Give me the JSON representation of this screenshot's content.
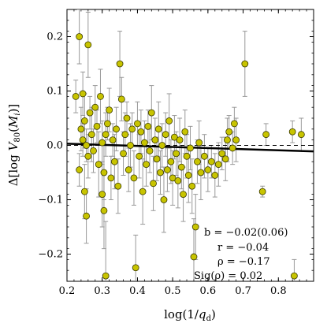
{
  "chart_data": {
    "type": "scatter",
    "xlabel": "log(1/q_d)",
    "ylabel": "Δ[log V_80(M_i)]",
    "xlim": [
      0.2,
      0.9
    ],
    "ylim": [
      -0.25,
      0.25
    ],
    "xticks": [
      0.2,
      0.3,
      0.4,
      0.5,
      0.6,
      0.7,
      0.8
    ],
    "xtick_labels": [
      "0.2",
      "0.3",
      "0.4",
      "0.5",
      "0.6",
      "0.7",
      "0.8"
    ],
    "yticks": [
      -0.2,
      -0.1,
      0.0,
      0.1,
      0.2
    ],
    "ytick_labels": [
      "−0.2",
      "−0.1",
      "0.0",
      "0.1",
      "0.2"
    ],
    "grid": false,
    "legend": "none",
    "colors": {
      "marker_fill": "#c8c400",
      "marker_edge": "#3a3a00",
      "error_bar": "#999999",
      "fit_line": "#000000",
      "zero_line": "#000000"
    },
    "fit_line": {
      "x": [
        0.2,
        0.9
      ],
      "y": [
        0.003,
        -0.011
      ],
      "style": "solid"
    },
    "reference_line": {
      "y": 0.0,
      "style": "dashed"
    },
    "stats": [
      {
        "label": "b = −0.02(0.06)"
      },
      {
        "label": "r = −0.04"
      },
      {
        "label": "ρ = −0.17"
      },
      {
        "label": "Sig(ρ) = 0.02"
      }
    ],
    "points": [
      {
        "x": 0.235,
        "y": 0.2,
        "err": 0.05
      },
      {
        "x": 0.225,
        "y": 0.09,
        "err": 0.03
      },
      {
        "x": 0.26,
        "y": 0.185,
        "err": 0.06
      },
      {
        "x": 0.245,
        "y": 0.095,
        "err": 0.04
      },
      {
        "x": 0.235,
        "y": -0.045,
        "err": 0.03
      },
      {
        "x": 0.25,
        "y": -0.085,
        "err": 0.05
      },
      {
        "x": 0.255,
        "y": -0.13,
        "err": 0.05
      },
      {
        "x": 0.24,
        "y": 0.03,
        "err": 0.04
      },
      {
        "x": 0.245,
        "y": 0.01,
        "err": 0.03
      },
      {
        "x": 0.25,
        "y": 0.045,
        "err": 0.05
      },
      {
        "x": 0.255,
        "y": 0.0,
        "err": 0.03
      },
      {
        "x": 0.26,
        "y": -0.02,
        "err": 0.04
      },
      {
        "x": 0.265,
        "y": 0.06,
        "err": 0.03
      },
      {
        "x": 0.27,
        "y": 0.02,
        "err": 0.05
      },
      {
        "x": 0.275,
        "y": -0.01,
        "err": 0.04
      },
      {
        "x": 0.28,
        "y": 0.07,
        "err": 0.04
      },
      {
        "x": 0.285,
        "y": 0.035,
        "err": 0.03
      },
      {
        "x": 0.29,
        "y": -0.035,
        "err": 0.06
      },
      {
        "x": 0.295,
        "y": 0.09,
        "err": 0.05
      },
      {
        "x": 0.3,
        "y": 0.005,
        "err": 0.04
      },
      {
        "x": 0.305,
        "y": -0.05,
        "err": 0.05
      },
      {
        "x": 0.31,
        "y": 0.02,
        "err": 0.04
      },
      {
        "x": 0.3,
        "y": -0.09,
        "err": 0.06
      },
      {
        "x": 0.305,
        "y": -0.12,
        "err": 0.07
      },
      {
        "x": 0.31,
        "y": -0.24,
        "err": 0.1
      },
      {
        "x": 0.315,
        "y": 0.04,
        "err": 0.03
      },
      {
        "x": 0.32,
        "y": 0.065,
        "err": 0.04
      },
      {
        "x": 0.325,
        "y": -0.06,
        "err": 0.04
      },
      {
        "x": 0.33,
        "y": 0.01,
        "err": 0.03
      },
      {
        "x": 0.335,
        "y": -0.03,
        "err": 0.05
      },
      {
        "x": 0.34,
        "y": 0.03,
        "err": 0.04
      },
      {
        "x": 0.345,
        "y": -0.075,
        "err": 0.05
      },
      {
        "x": 0.35,
        "y": 0.15,
        "err": 0.06
      },
      {
        "x": 0.355,
        "y": 0.085,
        "err": 0.04
      },
      {
        "x": 0.36,
        "y": -0.015,
        "err": 0.04
      },
      {
        "x": 0.365,
        "y": 0.02,
        "err": 0.04
      },
      {
        "x": 0.37,
        "y": 0.05,
        "err": 0.03
      },
      {
        "x": 0.375,
        "y": -0.045,
        "err": 0.04
      },
      {
        "x": 0.38,
        "y": 0.0,
        "err": 0.04
      },
      {
        "x": 0.385,
        "y": 0.03,
        "err": 0.03
      },
      {
        "x": 0.39,
        "y": -0.06,
        "err": 0.05
      },
      {
        "x": 0.395,
        "y": -0.225,
        "err": 0.06
      },
      {
        "x": 0.4,
        "y": 0.04,
        "err": 0.04
      },
      {
        "x": 0.405,
        "y": -0.02,
        "err": 0.04
      },
      {
        "x": 0.41,
        "y": 0.025,
        "err": 0.04
      },
      {
        "x": 0.415,
        "y": -0.085,
        "err": 0.06
      },
      {
        "x": 0.42,
        "y": 0.005,
        "err": 0.04
      },
      {
        "x": 0.425,
        "y": -0.035,
        "err": 0.04
      },
      {
        "x": 0.43,
        "y": 0.035,
        "err": 0.03
      },
      {
        "x": 0.435,
        "y": -0.01,
        "err": 0.04
      },
      {
        "x": 0.44,
        "y": 0.06,
        "err": 0.05
      },
      {
        "x": 0.445,
        "y": -0.07,
        "err": 0.05
      },
      {
        "x": 0.45,
        "y": 0.01,
        "err": 0.04
      },
      {
        "x": 0.455,
        "y": -0.025,
        "err": 0.04
      },
      {
        "x": 0.46,
        "y": 0.03,
        "err": 0.05
      },
      {
        "x": 0.465,
        "y": -0.05,
        "err": 0.04
      },
      {
        "x": 0.47,
        "y": 0.0,
        "err": 0.04
      },
      {
        "x": 0.475,
        "y": -0.1,
        "err": 0.06
      },
      {
        "x": 0.48,
        "y": 0.02,
        "err": 0.04
      },
      {
        "x": 0.485,
        "y": -0.045,
        "err": 0.04
      },
      {
        "x": 0.49,
        "y": 0.045,
        "err": 0.05
      },
      {
        "x": 0.495,
        "y": -0.03,
        "err": 0.04
      },
      {
        "x": 0.5,
        "y": -0.06,
        "err": 0.05
      },
      {
        "x": 0.505,
        "y": 0.015,
        "err": 0.04
      },
      {
        "x": 0.51,
        "y": -0.015,
        "err": 0.04
      },
      {
        "x": 0.515,
        "y": -0.065,
        "err": 0.05
      },
      {
        "x": 0.52,
        "y": 0.01,
        "err": 0.04
      },
      {
        "x": 0.525,
        "y": -0.04,
        "err": 0.04
      },
      {
        "x": 0.53,
        "y": -0.09,
        "err": 0.05
      },
      {
        "x": 0.535,
        "y": 0.025,
        "err": 0.04
      },
      {
        "x": 0.54,
        "y": -0.02,
        "err": 0.04
      },
      {
        "x": 0.545,
        "y": -0.055,
        "err": 0.05
      },
      {
        "x": 0.55,
        "y": -0.005,
        "err": 0.04
      },
      {
        "x": 0.555,
        "y": -0.075,
        "err": 0.05
      },
      {
        "x": 0.56,
        "y": -0.205,
        "err": 0.07
      },
      {
        "x": 0.565,
        "y": -0.15,
        "err": 0.06
      },
      {
        "x": 0.57,
        "y": -0.03,
        "err": 0.04
      },
      {
        "x": 0.575,
        "y": 0.005,
        "err": 0.04
      },
      {
        "x": 0.58,
        "y": -0.05,
        "err": 0.05
      },
      {
        "x": 0.59,
        "y": -0.02,
        "err": 0.04
      },
      {
        "x": 0.6,
        "y": -0.045,
        "err": 0.04
      },
      {
        "x": 0.61,
        "y": -0.03,
        "err": 0.03
      },
      {
        "x": 0.62,
        "y": -0.055,
        "err": 0.04
      },
      {
        "x": 0.63,
        "y": -0.035,
        "err": 0.04
      },
      {
        "x": 0.64,
        "y": -0.015,
        "err": 0.03
      },
      {
        "x": 0.65,
        "y": -0.025,
        "err": 0.04
      },
      {
        "x": 0.655,
        "y": 0.01,
        "err": 0.04
      },
      {
        "x": 0.66,
        "y": 0.025,
        "err": 0.03
      },
      {
        "x": 0.67,
        "y": -0.005,
        "err": 0.03
      },
      {
        "x": 0.675,
        "y": 0.04,
        "err": 0.03
      },
      {
        "x": 0.68,
        "y": 0.01,
        "err": 0.04
      },
      {
        "x": 0.705,
        "y": 0.15,
        "err": 0.06
      },
      {
        "x": 0.755,
        "y": -0.085,
        "err": 0.01
      },
      {
        "x": 0.765,
        "y": 0.02,
        "err": 0.02
      },
      {
        "x": 0.84,
        "y": 0.025,
        "err": 0.02
      },
      {
        "x": 0.865,
        "y": 0.02,
        "err": 0.03
      },
      {
        "x": 0.845,
        "y": -0.24,
        "err": 0.03
      }
    ]
  }
}
